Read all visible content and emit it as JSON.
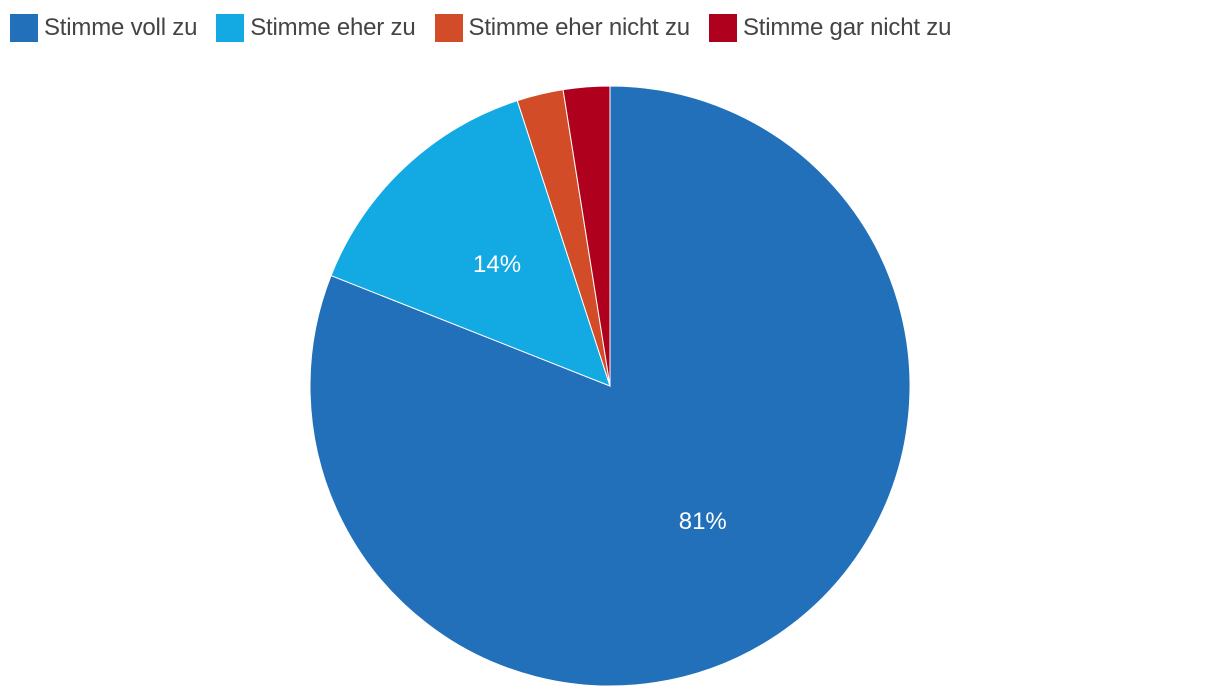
{
  "chart_data": {
    "type": "pie",
    "categories": [
      "Stimme voll zu",
      "Stimme eher zu",
      "Stimme eher nicht zu",
      "Stimme gar nicht zu"
    ],
    "values": [
      81,
      14,
      2.5,
      2.5
    ],
    "data_labels": [
      "81%",
      "14%",
      "",
      ""
    ],
    "colors": [
      "#2170B9",
      "#13A9E3",
      "#D24D27",
      "#AF001E"
    ],
    "legend_position": "top-left",
    "start_angle": "12 o'clock",
    "direction": "clockwise"
  }
}
